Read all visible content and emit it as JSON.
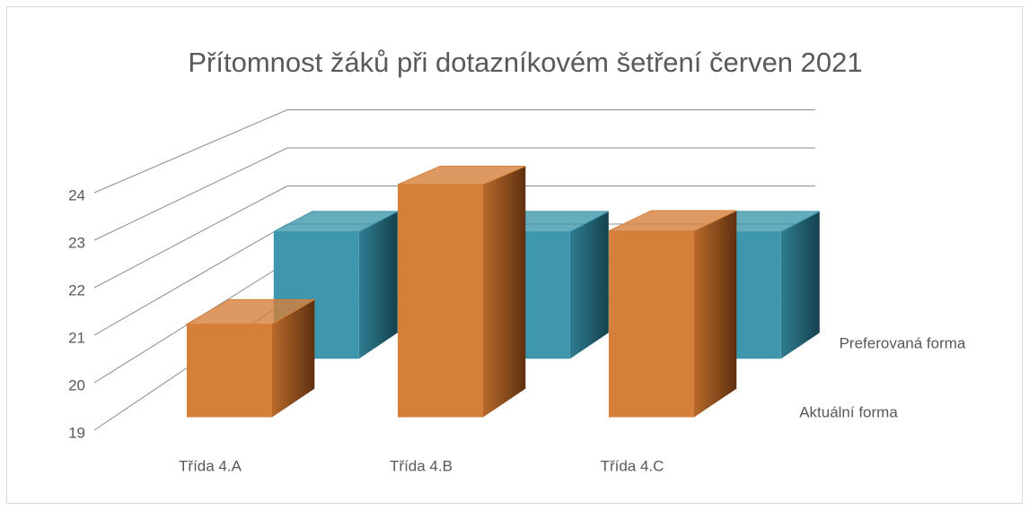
{
  "chart_data": {
    "type": "bar3d",
    "title": "Přítomnost žáků při dotazníkovém šetření červen 2021",
    "categories": [
      "Třída 4.A",
      "Třída 4.B",
      "Třída 4.C"
    ],
    "series": [
      {
        "name": "Aktuální forma",
        "color": "#d4803a",
        "values": [
          21,
          24,
          23
        ]
      },
      {
        "name": "Preferovaná forma",
        "color": "#3f97ad",
        "values": [
          22,
          22,
          22
        ]
      }
    ],
    "ylim": [
      19,
      24
    ],
    "yticks": [
      19,
      20,
      21,
      22,
      23,
      24
    ],
    "grid": true
  }
}
